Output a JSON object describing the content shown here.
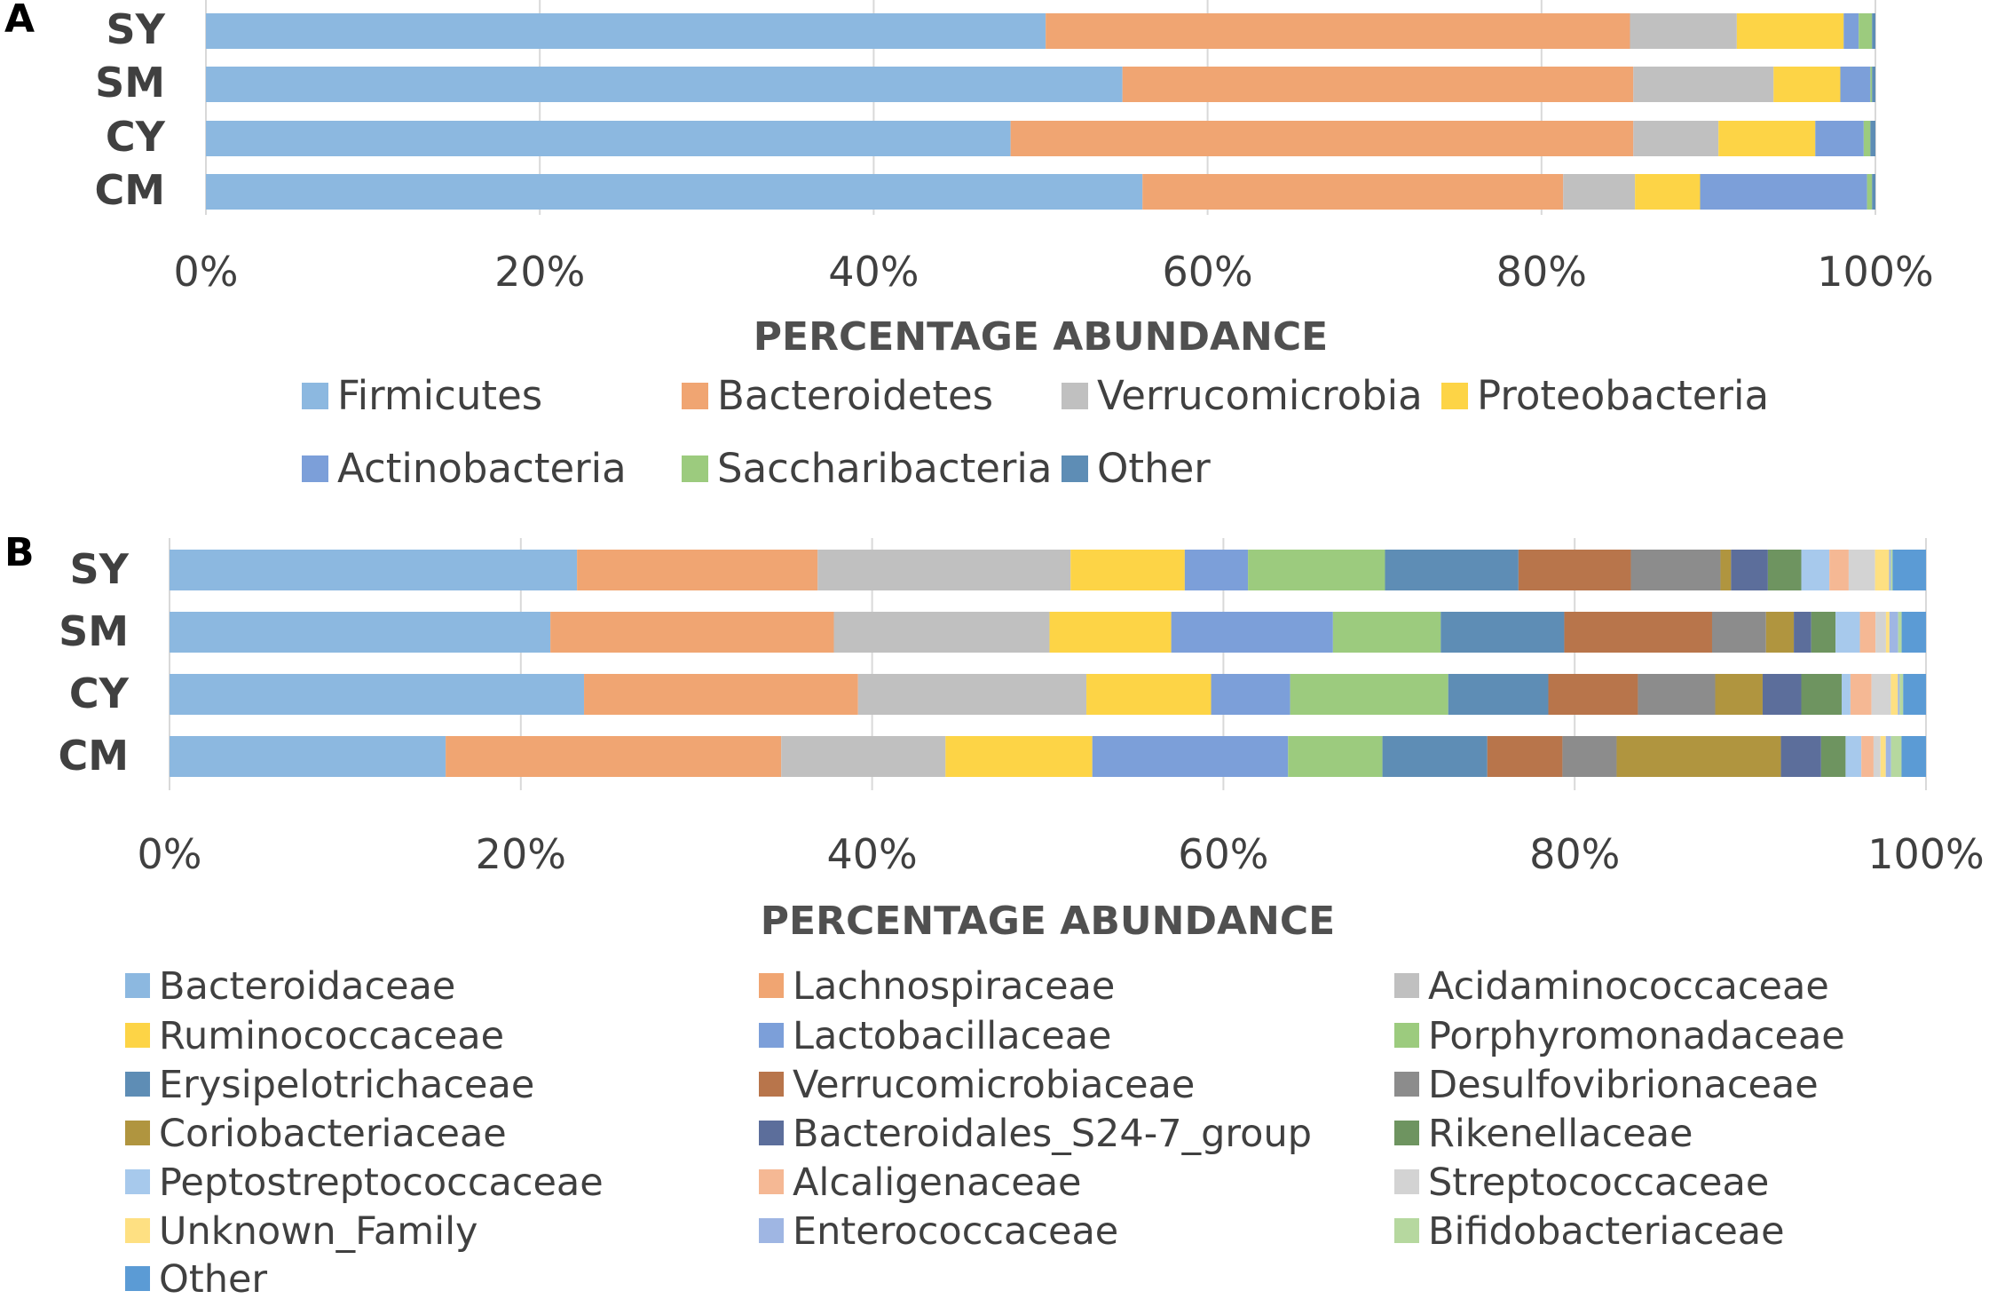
{
  "chart_data": [
    {
      "type": "bar",
      "orientation": "horizontal",
      "stacked": "percent",
      "panel": "A",
      "categories": [
        "SY",
        "SM",
        "CY",
        "CM"
      ],
      "xlabel": "PERCENTAGE ABUNDANCE",
      "xlim": [
        0,
        100
      ],
      "ticks": [
        "0%",
        "20%",
        "40%",
        "60%",
        "80%",
        "100%"
      ],
      "legend_position": "bottom",
      "grid": true,
      "series": [
        {
          "name": "Firmicutes",
          "color": "#8CB8E0",
          "values": [
            50.3,
            54.9,
            48.2,
            56.1
          ]
        },
        {
          "name": "Bacteroidetes",
          "color": "#F0A572",
          "values": [
            35.0,
            30.6,
            37.3,
            25.2
          ]
        },
        {
          "name": "Verrucomicrobia",
          "color": "#C0C0C0",
          "values": [
            6.4,
            8.4,
            5.1,
            4.3
          ]
        },
        {
          "name": "Proteobacteria",
          "color": "#FDD446",
          "values": [
            6.4,
            4.0,
            5.8,
            3.9
          ]
        },
        {
          "name": "Actinobacteria",
          "color": "#7C9FD9",
          "values": [
            0.9,
            1.8,
            2.9,
            10.0
          ]
        },
        {
          "name": "Saccharibacteria",
          "color": "#9CCB7E",
          "values": [
            0.8,
            0.1,
            0.4,
            0.3
          ]
        },
        {
          "name": "Other",
          "color": "#5E8DB5",
          "values": [
            0.2,
            0.2,
            0.3,
            0.2
          ]
        }
      ]
    },
    {
      "type": "bar",
      "orientation": "horizontal",
      "stacked": "percent",
      "panel": "B",
      "categories": [
        "SY",
        "SM",
        "CY",
        "CM"
      ],
      "xlabel": "PERCENTAGE ABUNDANCE",
      "xlim": [
        0,
        100
      ],
      "ticks": [
        "0%",
        "20%",
        "40%",
        "60%",
        "80%",
        "100%"
      ],
      "legend_position": "bottom",
      "grid": true,
      "series": [
        {
          "name": "Bacteroidaceae",
          "color": "#8CB8E0",
          "values": [
            23.2,
            21.9,
            23.6,
            15.8
          ]
        },
        {
          "name": "Lachnospiraceae",
          "color": "#F0A572",
          "values": [
            13.7,
            16.3,
            15.6,
            19.2
          ]
        },
        {
          "name": "Acidaminococcaceae",
          "color": "#C0C0C0",
          "values": [
            14.4,
            12.4,
            13.0,
            9.4
          ]
        },
        {
          "name": "Ruminococcaceae",
          "color": "#FDD446",
          "values": [
            6.5,
            7.0,
            7.1,
            8.4
          ]
        },
        {
          "name": "Lactobacillaceae",
          "color": "#7C9FD9",
          "values": [
            3.6,
            9.3,
            4.5,
            11.2
          ]
        },
        {
          "name": "Porphyromonadaceae",
          "color": "#9CCB7E",
          "values": [
            7.8,
            6.2,
            9.0,
            5.4
          ]
        },
        {
          "name": "Erysipelotrichaceae",
          "color": "#5E8DB5",
          "values": [
            7.6,
            7.1,
            5.7,
            6.0
          ]
        },
        {
          "name": "Verrucomicrobiaceae",
          "color": "#B8754B",
          "values": [
            6.4,
            8.5,
            5.1,
            4.3
          ]
        },
        {
          "name": "Desulfovibrionaceae",
          "color": "#8C8C8C",
          "values": [
            5.1,
            3.1,
            4.4,
            3.1
          ]
        },
        {
          "name": "Coriobacteriaceae",
          "color": "#B0953F",
          "values": [
            0.6,
            1.6,
            2.7,
            9.4
          ]
        },
        {
          "name": "Bacteroidales_S24-7_group",
          "color": "#5C6E9B",
          "values": [
            2.1,
            1.0,
            2.2,
            2.3
          ]
        },
        {
          "name": "Rikenellaceae",
          "color": "#6E9460",
          "values": [
            1.9,
            1.4,
            2.3,
            1.4
          ]
        },
        {
          "name": "Peptostreptococcaceae",
          "color": "#A7C9EC",
          "values": [
            1.6,
            1.4,
            0.5,
            0.9
          ]
        },
        {
          "name": "Alcaligenaceae",
          "color": "#F5B894",
          "values": [
            1.1,
            0.9,
            1.2,
            0.7
          ]
        },
        {
          "name": "Streptococcaceae",
          "color": "#D3D3D3",
          "values": [
            1.5,
            0.6,
            1.1,
            0.4
          ]
        },
        {
          "name": "Unknown_Family",
          "color": "#FEE082",
          "values": [
            0.8,
            0.2,
            0.4,
            0.3
          ]
        },
        {
          "name": "Enterococcaceae",
          "color": "#9FB6E3",
          "values": [
            0.1,
            0.5,
            0.1,
            0.3
          ]
        },
        {
          "name": "Bifidobacteriaceae",
          "color": "#B6D89F",
          "values": [
            0.1,
            0.2,
            0.2,
            0.6
          ]
        },
        {
          "name": "Other",
          "color": "#5B9BD5",
          "values": [
            1.9,
            1.4,
            1.3,
            1.4
          ]
        }
      ]
    }
  ]
}
